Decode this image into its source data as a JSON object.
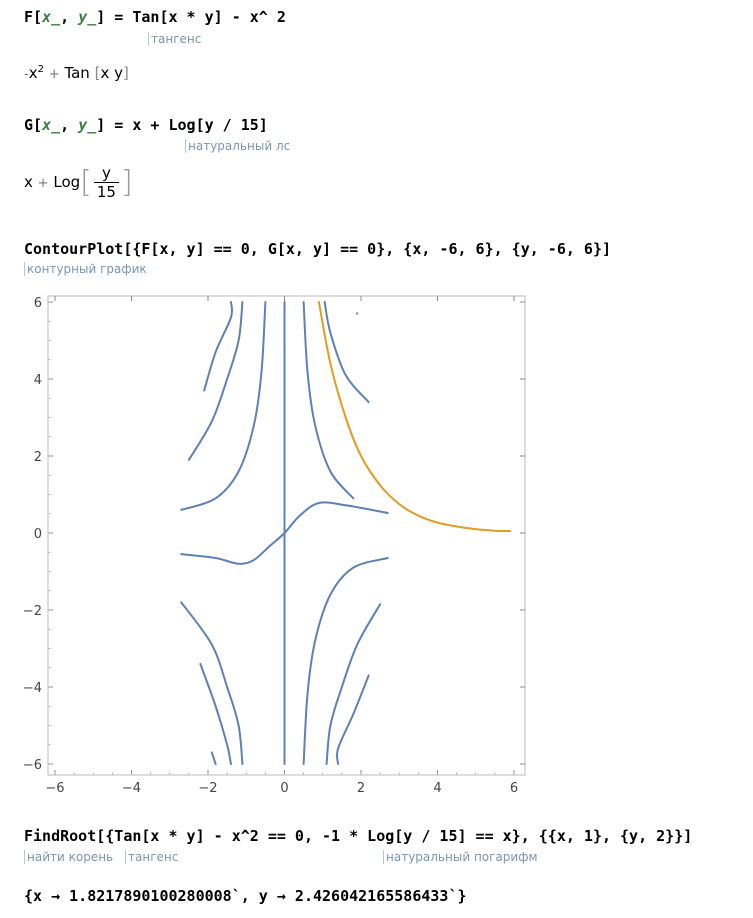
{
  "cells": {
    "f_def": {
      "head": "F[",
      "p1": "x_",
      "sep": ", ",
      "p2": "y_",
      "rest": "] = Tan[x * y] - x^ 2",
      "hint": "тангенс"
    },
    "f_out": {
      "minus": "-",
      "x": "x",
      "sup": "2",
      "plus": "+",
      "tan": "Tan",
      "lb": "[",
      "arg": "x y",
      "rb": "]"
    },
    "g_def": {
      "head": "G[",
      "p1": "x_",
      "sep": ", ",
      "p2": "y_",
      "rest": "] = x + Log[y / 15]",
      "hint": "натуральный лс"
    },
    "g_out": {
      "x": "x",
      "plus": "+",
      "log": "Log",
      "num": "y",
      "den": "15",
      "lb": "[",
      "rb": "]"
    },
    "contour_cmd": {
      "text": "ContourPlot[{F[x, y] == 0, G[x, y] == 0}, {x, -6, 6}, {y, -6, 6}]",
      "hint": "контурный график"
    },
    "findroot_cmd": {
      "text": "FindRoot[{Tan[x * y] - x^2 == 0, -1 * Log[y / 15] == x}, {{x, 1}, {y, 2}}]",
      "hint1": "найти корень",
      "hint2": "тангенс",
      "hint3": "натуральный погарифм"
    },
    "result": "{x → 1.8217890100280008`, y → 2.426042165586433`}"
  },
  "chart_data": {
    "type": "line",
    "title": "",
    "xlabel": "",
    "ylabel": "",
    "xlim": [
      -6,
      6
    ],
    "ylim": [
      -6,
      6
    ],
    "xticks": [
      "−6",
      "−4",
      "−2",
      "0",
      "2",
      "4",
      "6"
    ],
    "yticks": [
      "−6",
      "−4",
      "−2",
      "0",
      "2",
      "4",
      "6"
    ],
    "colors": {
      "F": "#5e81b5",
      "G": "#e19c24"
    },
    "series": [
      {
        "key": "F",
        "segments": [
          [
            [
              -2.1,
              3.7
            ],
            [
              -1.8,
              4.7
            ],
            [
              -1.4,
              5.6
            ],
            [
              -1.4,
              6
            ]
          ],
          [
            [
              -2.5,
              1.9
            ],
            [
              -1.9,
              2.9
            ],
            [
              -1.5,
              4.0
            ],
            [
              -1.2,
              5.0
            ],
            [
              -1.1,
              6
            ]
          ],
          [
            [
              -2.7,
              0.6
            ],
            [
              -1.8,
              0.9
            ],
            [
              -1.2,
              1.6
            ],
            [
              -0.8,
              2.8
            ],
            [
              -0.6,
              4.2
            ],
            [
              -0.5,
              6
            ]
          ],
          [
            [
              -2.7,
              -0.55
            ],
            [
              -1.8,
              -0.65
            ],
            [
              -1.2,
              -0.8
            ],
            [
              -0.8,
              -0.7
            ],
            [
              -0.4,
              -0.35
            ],
            [
              0,
              0
            ],
            [
              0.4,
              0.45
            ],
            [
              0.9,
              0.78
            ],
            [
              1.6,
              0.72
            ],
            [
              2.7,
              0.52
            ]
          ],
          [
            [
              0,
              -6
            ],
            [
              0,
              6
            ]
          ],
          [
            [
              0.5,
              6
            ],
            [
              0.6,
              4.2
            ],
            [
              0.8,
              2.8
            ],
            [
              1.2,
              1.6
            ],
            [
              1.8,
              0.9
            ]
          ],
          [
            [
              1.05,
              6
            ],
            [
              1.2,
              5.2
            ],
            [
              1.6,
              4.1
            ],
            [
              2.2,
              3.4
            ]
          ],
          [
            [
              1.9,
              5.7
            ]
          ],
          [
            [
              2.7,
              -0.65
            ],
            [
              1.8,
              -0.9
            ],
            [
              1.2,
              -1.6
            ],
            [
              0.8,
              -2.8
            ],
            [
              0.6,
              -4.2
            ],
            [
              0.5,
              -6
            ]
          ],
          [
            [
              2.5,
              -1.85
            ],
            [
              1.9,
              -2.9
            ],
            [
              1.5,
              -4.0
            ],
            [
              1.2,
              -5.0
            ],
            [
              1.1,
              -6
            ]
          ],
          [
            [
              2.2,
              -3.7
            ],
            [
              1.8,
              -4.7
            ],
            [
              1.4,
              -5.6
            ],
            [
              1.4,
              -6
            ]
          ],
          [
            [
              -2.7,
              -1.8
            ],
            [
              -1.9,
              -2.9
            ],
            [
              -1.5,
              -4.0
            ],
            [
              -1.2,
              -5.0
            ],
            [
              -1.1,
              -6
            ]
          ],
          [
            [
              -2.2,
              -3.4
            ],
            [
              -1.8,
              -4.5
            ],
            [
              -1.5,
              -5.5
            ],
            [
              -1.4,
              -6
            ]
          ],
          [
            [
              -1.9,
              -5.7
            ],
            [
              -1.8,
              -6
            ]
          ]
        ]
      },
      {
        "key": "G",
        "segments": [
          [
            [
              0.9,
              6
            ],
            [
              1.2,
              4.4
            ],
            [
              1.6,
              3.0
            ],
            [
              2,
              2.0
            ],
            [
              2.5,
              1.24
            ],
            [
              3,
              0.75
            ],
            [
              3.5,
              0.45
            ],
            [
              4,
              0.27
            ],
            [
              4.5,
              0.17
            ],
            [
              5,
              0.1
            ],
            [
              5.5,
              0.06
            ],
            [
              5.9,
              0.05
            ]
          ]
        ]
      }
    ]
  }
}
